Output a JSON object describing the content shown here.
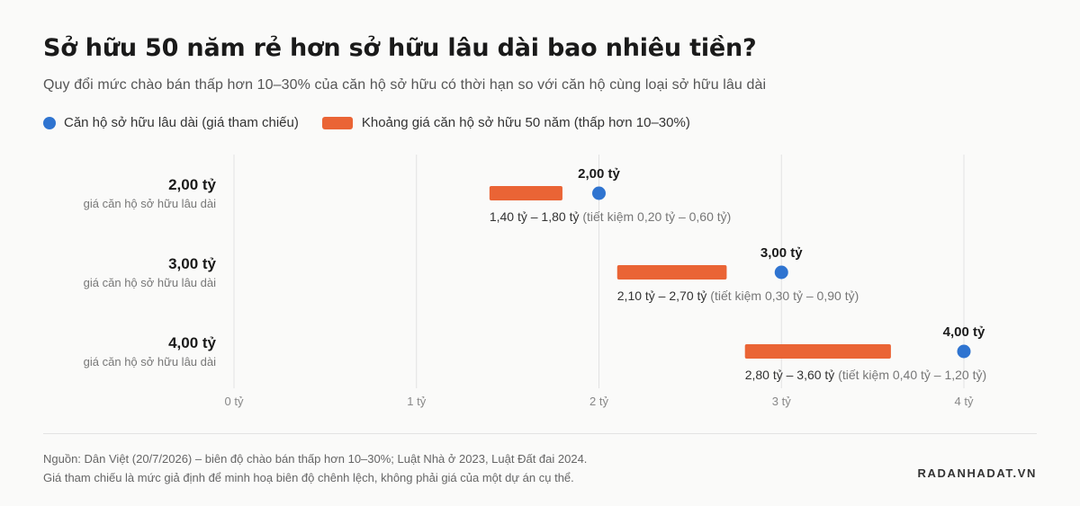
{
  "header": {
    "title": "Sở hữu 50 năm rẻ hơn sở hữu lâu dài bao nhiêu tiền?",
    "subtitle": "Quy đổi mức chào bán thấp hơn 10–30% của căn hộ sở hữu có thời hạn so với căn hộ cùng loại sở hữu lâu dài"
  },
  "legend": {
    "reference": "Căn hộ sở hữu lâu dài (giá tham chiếu)",
    "range": "Khoảng giá căn hộ sở hữu 50 năm (thấp hơn 10–30%)"
  },
  "colors": {
    "reference": "#2f74d0",
    "range": "#ea6435",
    "grid": "#e2e2e2"
  },
  "chart_data": {
    "type": "range-dot",
    "xlim": [
      0,
      4
    ],
    "x_ticks": [
      0,
      1,
      2,
      3,
      4
    ],
    "x_tick_labels": [
      "0 tỷ",
      "1 tỷ",
      "2 tỷ",
      "3 tỷ",
      "4 tỷ"
    ],
    "row_sublabel": "giá căn hộ sở hữu lâu dài",
    "rows": [
      {
        "label": "2,00 tỷ",
        "reference": 2.0,
        "range": [
          1.4,
          1.8
        ],
        "dot_label": "2,00 tỷ",
        "range_label": "1,40 tỷ – 1,80 tỷ",
        "saving_label": "(tiết kiệm 0,20 tỷ – 0,60 tỷ)"
      },
      {
        "label": "3,00 tỷ",
        "reference": 3.0,
        "range": [
          2.1,
          2.7
        ],
        "dot_label": "3,00 tỷ",
        "range_label": "2,10 tỷ – 2,70 tỷ",
        "saving_label": "(tiết kiệm 0,30 tỷ – 0,90 tỷ)"
      },
      {
        "label": "4,00 tỷ",
        "reference": 4.0,
        "range": [
          2.8,
          3.6
        ],
        "dot_label": "4,00 tỷ",
        "range_label": "2,80 tỷ – 3,60 tỷ",
        "saving_label": "(tiết kiệm 0,40 tỷ – 1,20 tỷ)"
      }
    ]
  },
  "footer": {
    "source_line1": "Nguồn: Dân Việt (20/7/2026) – biên độ chào bán thấp hơn 10–30%; Luật Nhà ở 2023, Luật Đất đai 2024.",
    "source_line2": "Giá tham chiếu là mức giả định để minh hoạ biên độ chênh lệch, không phải giá của một dự án cụ thể.",
    "brand": "RADANHADAT.VN"
  }
}
